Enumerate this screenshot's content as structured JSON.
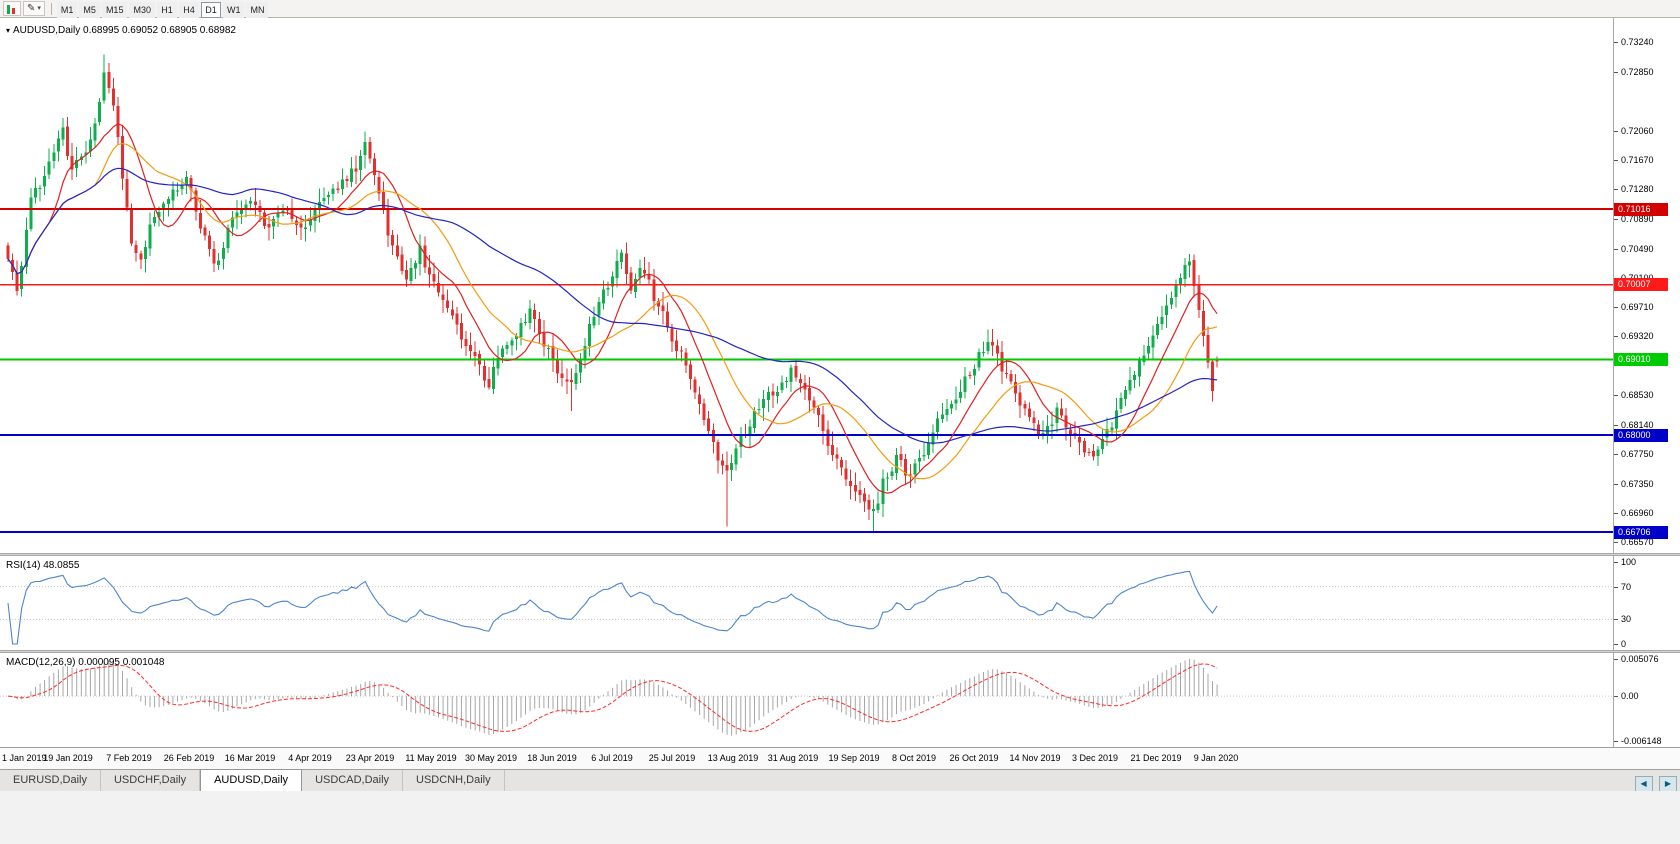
{
  "toolbar": {
    "draw_icon": "✎",
    "dropdown": "▾",
    "timeframes": [
      "M1",
      "M5",
      "M15",
      "M30",
      "H1",
      "H4",
      "D1",
      "W1",
      "MN"
    ],
    "active_timeframe": "D1"
  },
  "chart": {
    "collapse_icon": "▾",
    "header": "AUDUSD,Daily 0.68995 0.69052 0.68905 0.68982",
    "symbol": "AUDUSD",
    "period": "Daily",
    "open": "0.68995",
    "high": "0.69052",
    "low": "0.68905",
    "close": "0.68982"
  },
  "price_axis": {
    "ticks": [
      "0.73240",
      "0.72850",
      "0.72060",
      "0.71670",
      "0.71280",
      "0.70890",
      "0.70490",
      "0.70100",
      "0.69710",
      "0.69320",
      "0.68530",
      "0.68140",
      "0.67750",
      "0.67350",
      "0.66960",
      "0.66570"
    ]
  },
  "hlines": [
    {
      "value": 0.71016,
      "label": "0.71016",
      "color": "#d40000",
      "width": 2
    },
    {
      "value": 0.70007,
      "label": "0.70007",
      "color": "#ff1a1a",
      "width": 1.3
    },
    {
      "value": 0.6901,
      "label": "0.69010",
      "color": "#00ca00",
      "width": 2
    },
    {
      "value": 0.68,
      "label": "0.68000",
      "color": "#0000c8",
      "width": 2
    },
    {
      "value": 0.66706,
      "label": "0.66706",
      "color": "#0000c8",
      "width": 2
    }
  ],
  "rsi": {
    "label": "RSI(14) 48.0855",
    "value": "48.0855",
    "period": 14,
    "color": "#4d86c8",
    "levels": [
      70,
      30
    ],
    "ticks": [
      {
        "v": 100,
        "t": "100"
      },
      {
        "v": 70,
        "t": "70"
      },
      {
        "v": 30,
        "t": "30"
      },
      {
        "v": 0,
        "t": "0"
      }
    ]
  },
  "macd": {
    "label": "MACD(12,26,9) 0.000095 0.001048",
    "main_value": "0.000095",
    "signal_value": "0.001048",
    "params": [
      12,
      26,
      9
    ],
    "hist_color": "#a6a6a6",
    "signal_color": "#ff2a2a",
    "range": [
      0.005076,
      -0.006148
    ],
    "ticks": [
      {
        "v": 0.005076,
        "t": "0.005076"
      },
      {
        "v": 0,
        "t": "0.00"
      },
      {
        "v": -0.006148,
        "t": "-0.006148"
      }
    ]
  },
  "date_axis": {
    "labels": [
      "1 Jan 2019",
      "19 Jan 2019",
      "7 Feb 2019",
      "26 Feb 2019",
      "16 Mar 2019",
      "4 Apr 2019",
      "23 Apr 2019",
      "11 May 2019",
      "30 May 2019",
      "18 Jun 2019",
      "6 Jul 2019",
      "25 Jul 2019",
      "13 Aug 2019",
      "31 Aug 2019",
      "19 Sep 2019",
      "8 Oct 2019",
      "26 Oct 2019",
      "14 Nov 2019",
      "3 Dec 2019",
      "21 Dec 2019",
      "9 Jan 2020"
    ]
  },
  "tabs": {
    "items": [
      "EURUSD,Daily",
      "USDCHF,Daily",
      "AUDUSD,Daily",
      "USDCAD,Daily",
      "USDCNH,Daily"
    ],
    "active_index": 2,
    "scroll_left": "◀",
    "scroll_right": "▶"
  },
  "chart_data": {
    "type": "candlestick",
    "title": "AUDUSD,Daily",
    "symbol": "AUDUSD",
    "timeframe": "Daily",
    "bar_count": 265,
    "ylim": [
      0.6648,
      0.7338
    ],
    "xlabels": [
      "1 Jan 2019",
      "19 Jan 2019",
      "7 Feb 2019",
      "26 Feb 2019",
      "16 Mar 2019",
      "4 Apr 2019",
      "23 Apr 2019",
      "11 May 2019",
      "30 May 2019",
      "18 Jun 2019",
      "6 Jul 2019",
      "25 Jul 2019",
      "13 Aug 2019",
      "31 Aug 2019",
      "19 Sep 2019",
      "8 Oct 2019",
      "26 Oct 2019",
      "14 Nov 2019",
      "3 Dec 2019",
      "21 Dec 2019",
      "9 Jan 2020"
    ],
    "up_color": "#0fae4d",
    "down_color": "#e03030",
    "price_anchors": [
      [
        0,
        0.704
      ],
      [
        2,
        0.6995
      ],
      [
        5,
        0.711
      ],
      [
        9,
        0.7165
      ],
      [
        12,
        0.7205
      ],
      [
        14,
        0.7155
      ],
      [
        17,
        0.718
      ],
      [
        20,
        0.7245
      ],
      [
        21,
        0.729
      ],
      [
        23,
        0.724
      ],
      [
        25,
        0.715
      ],
      [
        27,
        0.706
      ],
      [
        29,
        0.7035
      ],
      [
        32,
        0.7095
      ],
      [
        36,
        0.712
      ],
      [
        39,
        0.715
      ],
      [
        42,
        0.708
      ],
      [
        45,
        0.7025
      ],
      [
        49,
        0.7085
      ],
      [
        53,
        0.7115
      ],
      [
        57,
        0.7075
      ],
      [
        61,
        0.7105
      ],
      [
        64,
        0.707
      ],
      [
        68,
        0.7105
      ],
      [
        72,
        0.713
      ],
      [
        76,
        0.716
      ],
      [
        78,
        0.7185
      ],
      [
        81,
        0.712
      ],
      [
        84,
        0.705
      ],
      [
        87,
        0.701
      ],
      [
        90,
        0.7045
      ],
      [
        93,
        0.7
      ],
      [
        96,
        0.6975
      ],
      [
        99,
        0.6935
      ],
      [
        102,
        0.69
      ],
      [
        105,
        0.687
      ],
      [
        108,
        0.692
      ],
      [
        111,
        0.694
      ],
      [
        114,
        0.6965
      ],
      [
        117,
        0.6925
      ],
      [
        120,
        0.689
      ],
      [
        123,
        0.6865
      ],
      [
        126,
        0.6925
      ],
      [
        129,
        0.6975
      ],
      [
        132,
        0.7015
      ],
      [
        134,
        0.704
      ],
      [
        136,
        0.6995
      ],
      [
        138,
        0.703
      ],
      [
        141,
        0.6985
      ],
      [
        144,
        0.6945
      ],
      [
        147,
        0.6905
      ],
      [
        150,
        0.686
      ],
      [
        153,
        0.68
      ],
      [
        155,
        0.677
      ],
      [
        157,
        0.6745
      ],
      [
        159,
        0.6785
      ],
      [
        162,
        0.6815
      ],
      [
        165,
        0.6845
      ],
      [
        168,
        0.6865
      ],
      [
        171,
        0.6885
      ],
      [
        174,
        0.686
      ],
      [
        177,
        0.682
      ],
      [
        180,
        0.678
      ],
      [
        183,
        0.6745
      ],
      [
        186,
        0.6715
      ],
      [
        189,
        0.6695
      ],
      [
        191,
        0.6735
      ],
      [
        194,
        0.677
      ],
      [
        197,
        0.6745
      ],
      [
        200,
        0.678
      ],
      [
        203,
        0.6815
      ],
      [
        206,
        0.6845
      ],
      [
        209,
        0.6875
      ],
      [
        212,
        0.6905
      ],
      [
        214,
        0.693
      ],
      [
        217,
        0.689
      ],
      [
        220,
        0.6855
      ],
      [
        223,
        0.682
      ],
      [
        226,
        0.68
      ],
      [
        229,
        0.683
      ],
      [
        232,
        0.6805
      ],
      [
        235,
        0.678
      ],
      [
        238,
        0.6775
      ],
      [
        241,
        0.6815
      ],
      [
        244,
        0.6855
      ],
      [
        247,
        0.69
      ],
      [
        250,
        0.694
      ],
      [
        253,
        0.6975
      ],
      [
        256,
        0.701
      ],
      [
        258,
        0.703
      ],
      [
        260,
        0.6965
      ],
      [
        262,
        0.6895
      ],
      [
        263,
        0.6865
      ],
      [
        264,
        0.6898
      ]
    ],
    "spikes": [
      {
        "i": 21,
        "high": 0.7308
      },
      {
        "i": 78,
        "high": 0.7205
      },
      {
        "i": 105,
        "low": 0.6861
      },
      {
        "i": 123,
        "low": 0.6832
      },
      {
        "i": 134,
        "high": 0.7048
      },
      {
        "i": 157,
        "low": 0.6678
      },
      {
        "i": 189,
        "low": 0.6671
      },
      {
        "i": 258,
        "high": 0.7042
      }
    ],
    "moving_averages": [
      {
        "period": 10,
        "color": "#e02020"
      },
      {
        "period": 20,
        "color": "#f39c12"
      },
      {
        "period": 50,
        "color": "#2323c8"
      }
    ],
    "hline_values": [
      0.71016,
      0.70007,
      0.6901,
      0.68,
      0.66706
    ],
    "last_bar": {
      "open": 0.68995,
      "high": 0.69052,
      "low": 0.68905,
      "close": 0.68982
    }
  }
}
